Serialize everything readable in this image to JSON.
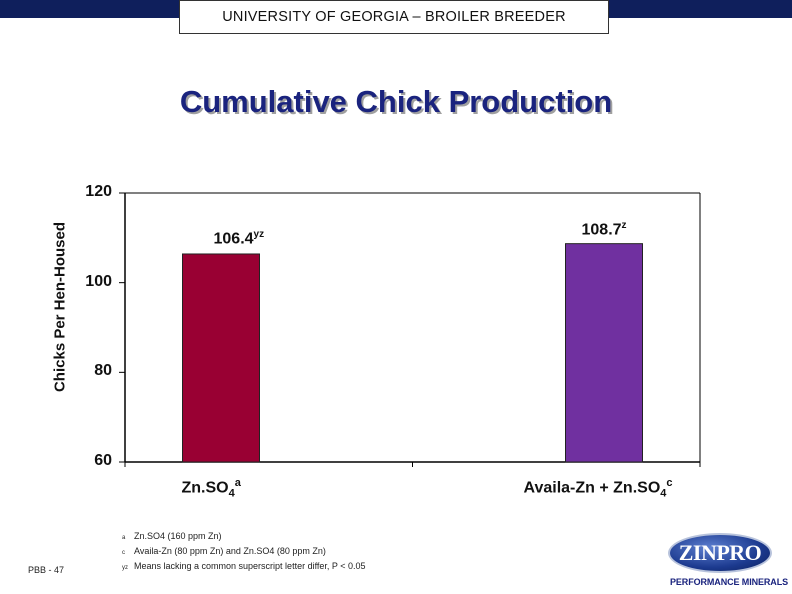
{
  "header": {
    "banner": "UNIVERSITY OF GEORGIA – BROILER BREEDER"
  },
  "chart_data": {
    "type": "bar",
    "title": "Cumulative Chick Production",
    "ylabel": "Chicks Per Hen-Housed",
    "xlabel": "",
    "ylim": [
      60,
      120
    ],
    "yticks": [
      60,
      80,
      100,
      120
    ],
    "ytick_labels": [
      "60",
      "80",
      "100",
      "120"
    ],
    "categories": [
      "Zn.SO4a",
      "Availa-Zn + Zn.SO4c"
    ],
    "category_parts": [
      {
        "base": "Zn.SO",
        "sub": "4",
        "sup": "a"
      },
      {
        "base": "Availa-Zn + Zn.SO",
        "sub": "4",
        "sup": "c"
      }
    ],
    "values": [
      106.4,
      108.7
    ],
    "value_labels": [
      {
        "value": "106.4",
        "sup": "yz"
      },
      {
        "value": "108.7",
        "sup": "z"
      }
    ],
    "colors": [
      "#990033",
      "#7030a0"
    ],
    "grid": false
  },
  "footnotes": [
    {
      "marker": "a",
      "text": "Zn.SO4 (160 ppm Zn)"
    },
    {
      "marker": "c",
      "text": "Availa-Zn (80 ppm Zn) and Zn.SO4 (80 ppm Zn)"
    },
    {
      "marker": "yz",
      "text": "Means lacking a common superscript letter differ, P < 0.05"
    }
  ],
  "footer": {
    "slide_id": "PBB - 47"
  },
  "logo": {
    "name": "ZINPRO",
    "tagline": "PERFORMANCE MINERALS"
  }
}
